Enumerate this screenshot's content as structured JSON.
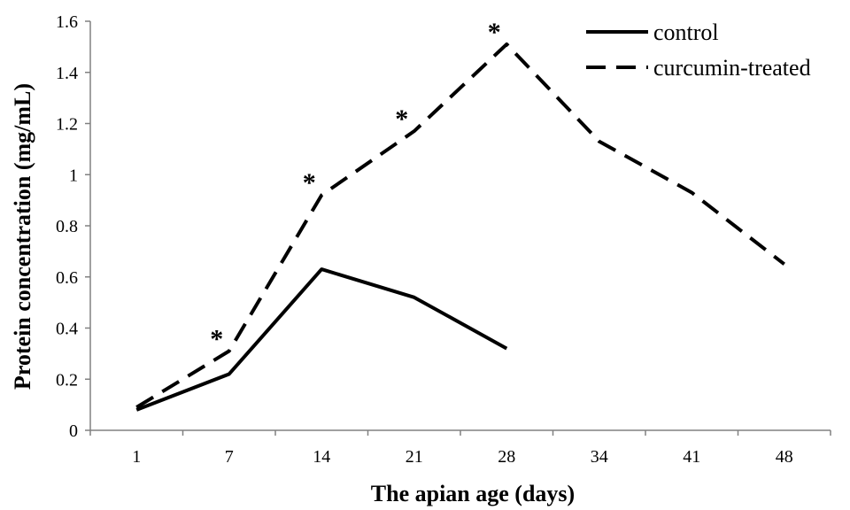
{
  "chart_data": {
    "type": "line",
    "categories": [
      "1",
      "7",
      "14",
      "21",
      "28",
      "34",
      "41",
      "48"
    ],
    "xlabel": "The apian age (days)",
    "ylabel": "Protein concentration (mg/mL)",
    "ylim": [
      0,
      1.6
    ],
    "yticks": [
      "0",
      "0.2",
      "0.4",
      "0.6",
      "0.8",
      "1",
      "1.2",
      "1.4",
      "1.6"
    ],
    "grid": false,
    "legend_position": "top-right",
    "series": [
      {
        "name": "control",
        "style": "solid",
        "color": "#000000",
        "values": [
          0.08,
          0.22,
          0.63,
          0.52,
          0.32,
          null,
          null,
          null
        ]
      },
      {
        "name": "curcumin-treated",
        "style": "dashed",
        "color": "#000000",
        "values": [
          0.09,
          0.31,
          0.92,
          1.17,
          1.51,
          1.13,
          0.93,
          0.65
        ]
      }
    ],
    "annotations": [
      {
        "text": "*",
        "x": "7",
        "y": 0.38
      },
      {
        "text": "*",
        "x": "14",
        "y": 0.99
      },
      {
        "text": "*",
        "x": "21",
        "y": 1.24
      },
      {
        "text": "*",
        "x": "28",
        "y": 1.58
      }
    ]
  }
}
